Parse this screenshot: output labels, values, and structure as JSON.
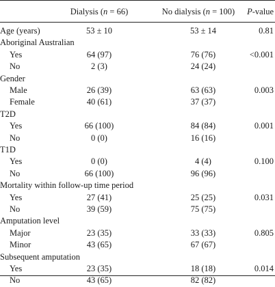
{
  "header": {
    "col1": "Dialysis (n = 66)",
    "col2": "No dialysis (n = 100)",
    "col3": "P-value"
  },
  "rows": [
    {
      "label": "Age (years)",
      "indent": false,
      "c1": "53 ± 10",
      "c2": "53 ± 14",
      "p": "0.81"
    },
    {
      "label": "Aboriginal Australian",
      "indent": false,
      "c1": "",
      "c2": "",
      "p": ""
    },
    {
      "label": "Yes",
      "indent": true,
      "c1": "64 (97)",
      "c2": "76 (76)",
      "p": "<0.001"
    },
    {
      "label": "No",
      "indent": true,
      "c1": "2 (3)",
      "c2": "24 (24)",
      "p": ""
    },
    {
      "label": "Gender",
      "indent": false,
      "c1": "",
      "c2": "",
      "p": ""
    },
    {
      "label": "Male",
      "indent": true,
      "c1": "26 (39)",
      "c2": "63 (63)",
      "p": "0.003"
    },
    {
      "label": "Female",
      "indent": true,
      "c1": "40 (61)",
      "c2": "37 (37)",
      "p": ""
    },
    {
      "label": "T2D",
      "indent": false,
      "c1": "",
      "c2": "",
      "p": ""
    },
    {
      "label": "Yes",
      "indent": true,
      "c1": "66 (100)",
      "c2": "84 (84)",
      "p": "0.001"
    },
    {
      "label": "No",
      "indent": true,
      "c1": "0 (0)",
      "c2": "16 (16)",
      "p": ""
    },
    {
      "label": "T1D",
      "indent": false,
      "c1": "",
      "c2": "",
      "p": ""
    },
    {
      "label": "Yes",
      "indent": true,
      "c1": "0 (0)",
      "c2": "4 (4)",
      "p": "0.100"
    },
    {
      "label": "No",
      "indent": true,
      "c1": "66 (100)",
      "c2": "96 (96)",
      "p": ""
    },
    {
      "label": "Mortality within follow-up time period",
      "indent": false,
      "c1": "",
      "c2": "",
      "p": ""
    },
    {
      "label": "Yes",
      "indent": true,
      "c1": "27 (41)",
      "c2": "25 (25)",
      "p": "0.031"
    },
    {
      "label": "No",
      "indent": true,
      "c1": "39 (59)",
      "c2": "75 (75)",
      "p": ""
    },
    {
      "label": "Amputation level",
      "indent": false,
      "c1": "",
      "c2": "",
      "p": ""
    },
    {
      "label": "Major",
      "indent": true,
      "c1": "23 (35)",
      "c2": "33 (33)",
      "p": "0.805"
    },
    {
      "label": "Minor",
      "indent": true,
      "c1": "43 (65)",
      "c2": "67 (67)",
      "p": ""
    },
    {
      "label": "Subsequent amputation",
      "indent": false,
      "c1": "",
      "c2": "",
      "p": ""
    },
    {
      "label": "Yes",
      "indent": true,
      "c1": "23 (35)",
      "c2": "18 (18)",
      "p": "0.014"
    },
    {
      "label": "No",
      "indent": true,
      "c1": "43 (65)",
      "c2": "82 (82)",
      "p": ""
    }
  ]
}
